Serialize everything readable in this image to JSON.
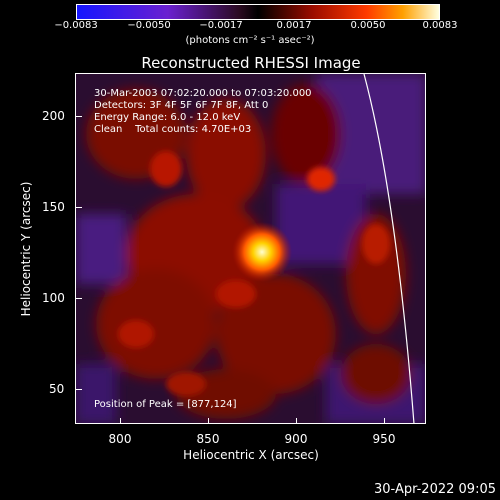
{
  "colorbar": {
    "tick_labels": [
      "−0.0083",
      "−0.0050",
      "−0.0017",
      "0.0017",
      "0.0050",
      "0.0083"
    ],
    "unit_label": "(photons cm⁻² s⁻¹ asec⁻²)"
  },
  "plot": {
    "title": "Reconstructed RHESSI Image",
    "xlabel": "Heliocentric X (arcsec)",
    "ylabel": "Heliocentric Y (arcsec)",
    "x_ticks": [
      "800",
      "850",
      "900",
      "950"
    ],
    "y_ticks": [
      "200",
      "150",
      "100",
      "50"
    ]
  },
  "annotations": {
    "time_range": "30-Mar-2003 07:02:20.000 to 07:03:20.000",
    "detectors": "Detectors: 3F 4F 5F 6F 7F 8F, Att 0",
    "energy_range": "Energy Range: 6.0 - 12.0 keV",
    "clean_counts": "Clean    Total counts: 4.70E+03",
    "peak": "Position of Peak = [877,124]"
  },
  "footer": {
    "timestamp": "30-Apr-2022 09:05"
  }
}
